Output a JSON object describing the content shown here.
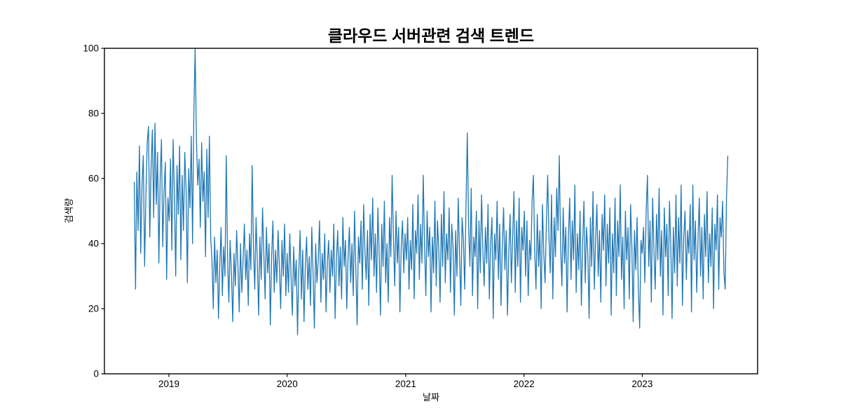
{
  "figure": {
    "background": "#ffffff"
  },
  "chart_data": {
    "type": "line",
    "title": "클라우드 서버관련 검색 트렌드",
    "xlabel": "날짜",
    "ylabel": "검색량",
    "line_color": "#1f77b4",
    "axis_color": "#000000",
    "grid": false,
    "legend": null,
    "ylim": [
      0,
      100
    ],
    "y_ticks": [
      0,
      20,
      40,
      60,
      80,
      100
    ],
    "x_ticks": [
      {
        "label": "2019",
        "day": 107
      },
      {
        "label": "2020",
        "day": 472
      },
      {
        "label": "2021",
        "day": 838
      },
      {
        "label": "2022",
        "day": 1203
      },
      {
        "label": "2023",
        "day": 1568
      }
    ],
    "x_margin_days": 92,
    "x_range_approx": [
      "2018-09",
      "2023-09"
    ],
    "series": {
      "name": "검색량",
      "step_days": 4,
      "values": [
        59,
        26,
        62,
        44,
        70,
        37,
        58,
        67,
        33,
        55,
        71,
        76,
        42,
        63,
        75,
        48,
        77,
        52,
        68,
        34,
        60,
        72,
        39,
        56,
        65,
        29,
        54,
        47,
        66,
        38,
        72,
        55,
        30,
        64,
        49,
        70,
        35,
        61,
        44,
        68,
        57,
        28,
        63,
        51,
        73,
        40,
        80,
        100,
        72,
        58,
        66,
        45,
        71,
        53,
        62,
        36,
        69,
        48,
        73,
        42,
        35,
        20,
        42,
        28,
        38,
        17,
        33,
        45,
        24,
        39,
        30,
        67,
        36,
        22,
        41,
        31,
        16,
        37,
        27,
        44,
        33,
        19,
        40,
        25,
        35,
        46,
        29,
        38,
        21,
        43,
        32,
        64,
        39,
        26,
        48,
        34,
        18,
        42,
        29,
        51,
        37,
        23,
        45,
        31,
        40,
        15,
        36,
        47,
        25,
        38,
        28,
        44,
        33,
        20,
        41,
        30,
        46,
        24,
        37,
        25,
        43,
        30,
        18,
        39,
        27,
        35,
        12,
        32,
        44,
        23,
        38,
        16,
        33,
        42,
        26,
        36,
        21,
        45,
        31,
        14,
        40,
        28,
        35,
        47,
        22,
        37,
        29,
        43,
        19,
        34,
        41,
        25,
        38,
        30,
        46,
        17,
        35,
        44,
        27,
        39,
        23,
        48,
        33,
        41,
        20,
        36,
        45,
        28,
        40,
        24,
        50,
        32,
        15,
        42,
        34,
        47,
        26,
        52,
        38,
        29,
        44,
        21,
        49,
        35,
        54,
        30,
        43,
        25,
        51,
        37,
        18,
        46,
        33,
        53,
        28,
        40,
        22,
        48,
        36,
        61,
        42,
        27,
        50,
        34,
        45,
        19,
        39,
        47,
        31,
        43,
        35,
        48,
        26,
        41,
        32,
        52,
        23,
        44,
        37,
        55,
        29,
        46,
        34,
        61,
        40,
        24,
        50,
        36,
        45,
        19,
        42,
        31,
        53,
        27,
        47,
        38,
        22,
        49,
        33,
        56,
        28,
        43,
        35,
        51,
        25,
        46,
        39,
        18,
        44,
        30,
        54,
        37,
        21,
        48,
        41,
        26,
        52,
        74,
        45,
        33,
        57,
        24,
        42,
        36,
        50,
        20,
        47,
        31,
        55,
        38,
        27,
        45,
        34,
        52,
        23,
        40,
        48,
        17,
        43,
        35,
        53,
        29,
        46,
        21,
        39,
        51,
        32,
        44,
        18,
        37,
        49,
        28,
        42,
        56,
        25,
        47,
        33,
        54,
        22,
        45,
        38,
        50,
        30,
        47,
        24,
        41,
        35,
        53,
        61,
        38,
        26,
        49,
        33,
        44,
        20,
        52,
        37,
        28,
        46,
        61,
        42,
        31,
        55,
        23,
        48,
        36,
        57,
        44,
        67,
        39,
        27,
        51,
        34,
        45,
        19,
        42,
        54,
        29,
        47,
        35,
        58,
        25,
        43,
        32,
        50,
        21,
        40,
        53,
        28,
        45,
        37,
        17,
        48,
        33,
        56,
        26,
        41,
        52,
        30,
        44,
        22,
        49,
        38,
        55,
        27,
        46,
        34,
        51,
        18,
        43,
        31,
        54,
        24,
        47,
        36,
        58,
        29,
        42,
        20,
        50,
        35,
        45,
        23,
        52,
        39,
        16,
        44,
        32,
        48,
        26,
        14,
        41,
        37,
        45,
        28,
        50,
        61,
        33,
        47,
        22,
        54,
        38,
        26,
        49,
        35,
        57,
        30,
        44,
        18,
        51,
        36,
        46,
        24,
        53,
        40,
        17,
        45,
        31,
        55,
        27,
        48,
        34,
        58,
        21,
        42,
        50,
        29,
        44,
        37,
        52,
        19,
        58,
        35,
        47,
        25,
        41,
        54,
        30,
        45,
        23,
        49,
        36,
        56,
        28,
        43,
        33,
        51,
        20,
        46,
        38,
        55,
        26,
        48,
        42,
        53,
        31,
        26,
        54,
        67
      ]
    }
  }
}
